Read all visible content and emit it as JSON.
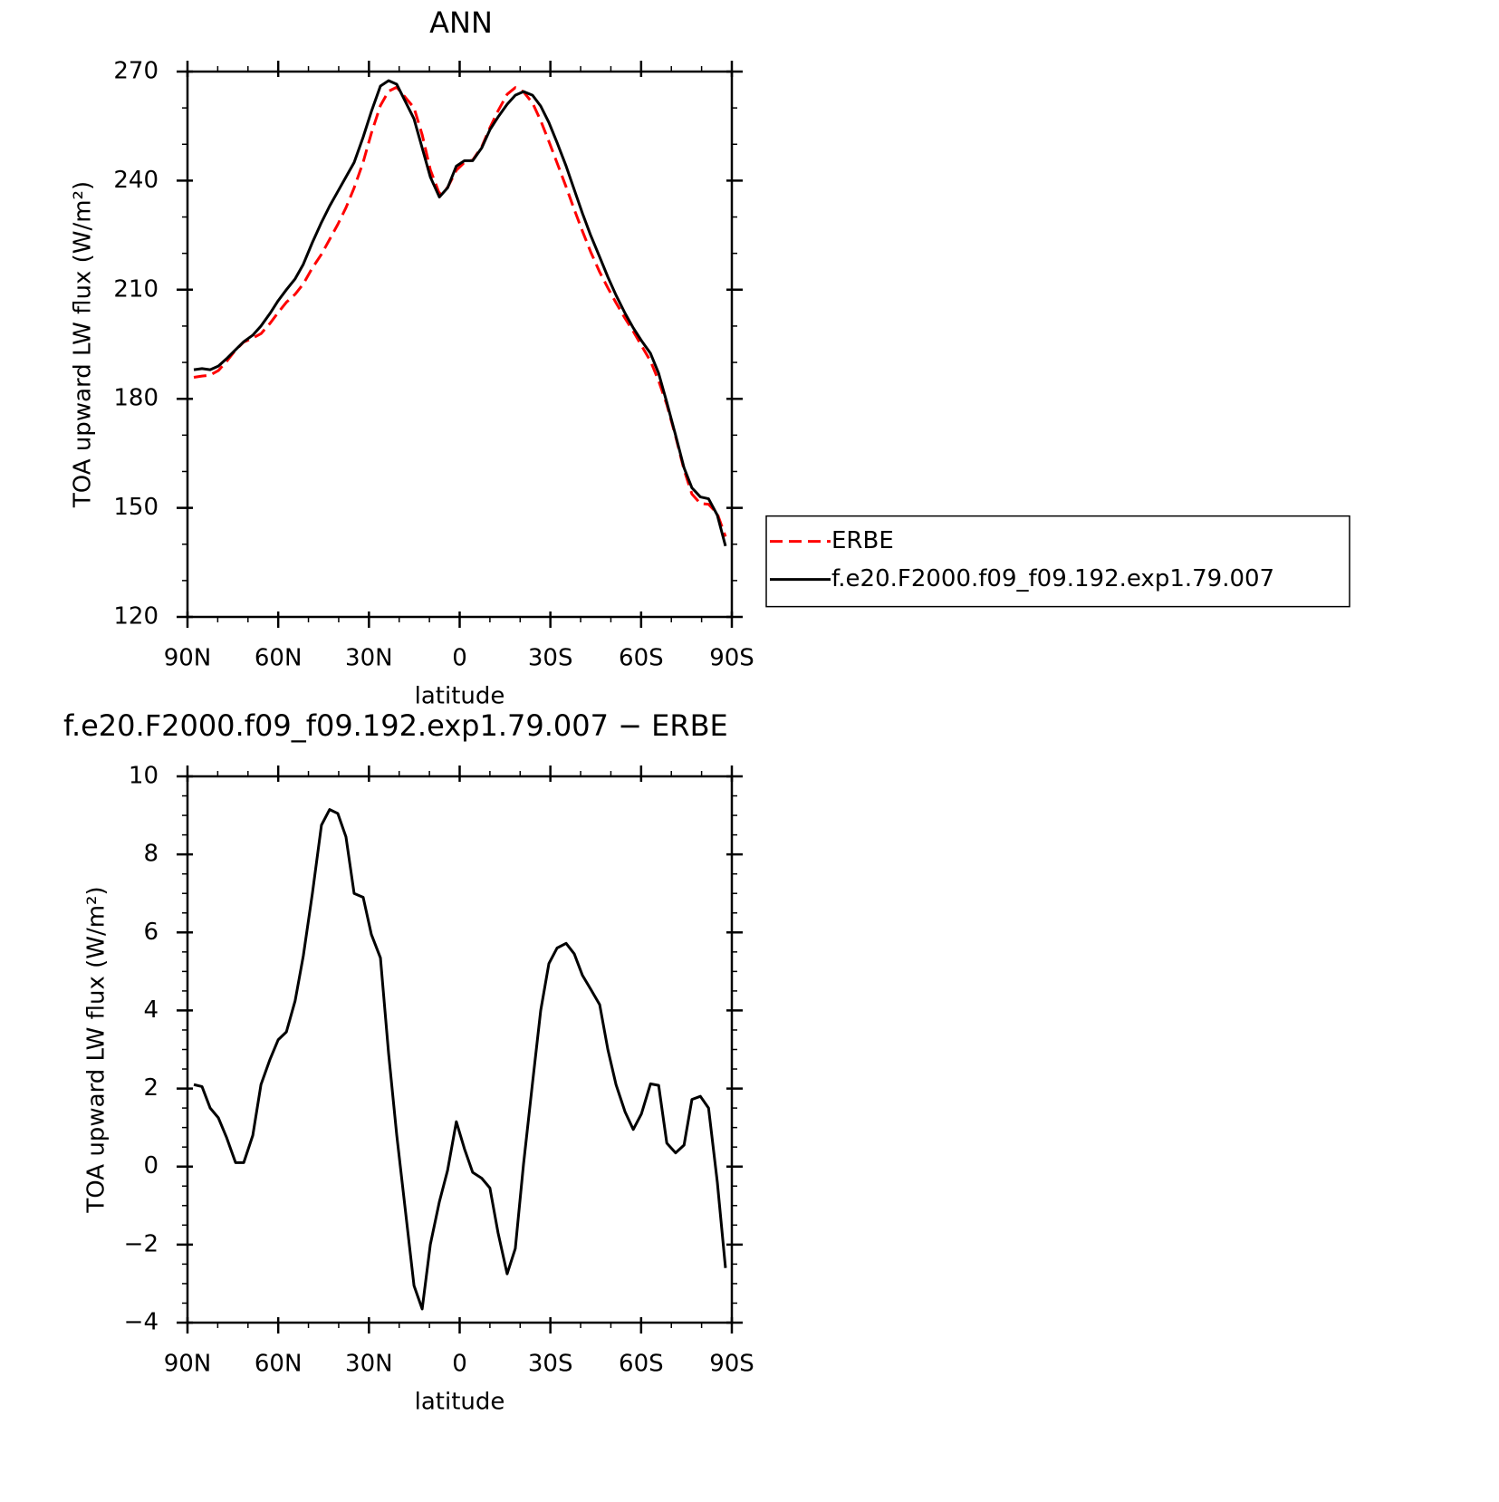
{
  "chart_data": [
    {
      "type": "line",
      "title": "ANN",
      "xlabel": "latitude",
      "ylabel": "TOA upward LW flux (W/m²)",
      "x": [
        87.9,
        85.2,
        82.5,
        79.8,
        77.1,
        74.1,
        71.4,
        68.4,
        65.7,
        62.7,
        60.0,
        57.3,
        54.4,
        51.7,
        48.7,
        45.7,
        43.0,
        40.3,
        37.6,
        34.9,
        31.9,
        29.2,
        26.2,
        23.5,
        20.8,
        15.1,
        12.4,
        9.7,
        6.7,
        4.0,
        1.1,
        -1.6,
        -4.3,
        -7.3,
        -10.0,
        -12.7,
        -15.7,
        -18.4,
        -21.1,
        -24.1,
        -26.8,
        -29.5,
        -32.2,
        -35.2,
        -37.9,
        -40.6,
        -43.3,
        -46.3,
        -49.0,
        -51.7,
        -54.7,
        -57.4,
        -60.1,
        -63.1,
        -65.8,
        -68.5,
        -71.4,
        -74.2,
        -76.8,
        -79.6,
        -82.3,
        -85.2,
        -87.9
      ],
      "xlim": [
        90,
        -90
      ],
      "xticks": [
        {
          "value": 90,
          "label": "90N"
        },
        {
          "value": 60,
          "label": "60N"
        },
        {
          "value": 30,
          "label": "30N"
        },
        0,
        {
          "value": -30,
          "label": "30S"
        },
        {
          "value": -60,
          "label": "60S"
        },
        {
          "value": -90,
          "label": "90S"
        }
      ],
      "ylim": [
        120,
        270
      ],
      "yticks": [
        120,
        150,
        180,
        210,
        240,
        270
      ],
      "minor_ticks": {
        "x": 2,
        "y": 2
      },
      "legend": "right",
      "series": [
        {
          "name": "ERBE",
          "color": "#ff0000",
          "dash": true,
          "values": [
            185.9,
            186.25,
            186.5,
            187.75,
            190.25,
            193.4,
            195.6,
            196.7,
            197.9,
            200.75,
            203.75,
            206.55,
            208.75,
            211.6,
            216,
            219.75,
            223.85,
            227.95,
            232.55,
            238,
            245.1,
            253.05,
            260.65,
            264.6,
            265.7,
            260.05,
            252.65,
            243,
            236.4,
            238.1,
            242.85,
            245.05,
            245.65,
            249.3,
            254.55,
            259.2,
            263.75,
            265.6,
            264.45,
            261.35,
            256.5,
            250.8,
            244.9,
            238.28,
            232.05,
            226.1,
            220.45,
            214.85,
            210.5,
            206.4,
            202.1,
            198.55,
            194.65,
            190.38,
            184.92,
            178.4,
            169.65,
            160.45,
            153.78,
            151.2,
            151,
            148.4,
            142.1
          ]
        },
        {
          "name": "f.e20.F2000.f09_f09.192.exp1.79.007",
          "color": "#000000",
          "dash": false,
          "values": [
            188,
            188.3,
            188,
            189,
            191,
            193.5,
            195.7,
            197.5,
            200,
            203.5,
            207,
            210,
            213,
            217,
            223,
            228.5,
            233,
            237,
            241,
            245,
            252,
            259,
            266,
            267.5,
            266.5,
            257,
            249,
            241,
            235.5,
            238,
            244,
            245.5,
            245.5,
            249,
            254,
            257.5,
            261,
            263.5,
            264.5,
            263.5,
            260.5,
            256,
            250.5,
            244,
            237.5,
            231,
            225,
            219,
            213.5,
            208.5,
            203.5,
            199.5,
            196,
            192.5,
            187,
            179,
            170,
            161,
            155.5,
            153,
            152.5,
            148,
            139.5
          ]
        }
      ]
    },
    {
      "type": "line",
      "title": "f.e20.F2000.f09_f09.192.exp1.79.007 − ERBE",
      "xlabel": "latitude",
      "ylabel": "TOA upward LW flux (W/m²)",
      "x": [
        87.9,
        85.2,
        82.5,
        79.8,
        77.1,
        74.1,
        71.4,
        68.4,
        65.7,
        62.7,
        60.0,
        57.3,
        54.4,
        51.7,
        48.7,
        45.7,
        43.0,
        40.3,
        37.6,
        34.9,
        31.9,
        29.2,
        26.2,
        23.5,
        20.8,
        15.1,
        12.4,
        9.7,
        6.7,
        4.0,
        1.1,
        -1.6,
        -4.3,
        -7.3,
        -10.0,
        -12.7,
        -15.7,
        -18.4,
        -21.1,
        -24.1,
        -26.8,
        -29.5,
        -32.2,
        -35.2,
        -37.9,
        -40.6,
        -43.3,
        -46.3,
        -49.0,
        -51.7,
        -54.7,
        -57.4,
        -60.1,
        -63.1,
        -65.8,
        -68.5,
        -71.4,
        -74.2,
        -76.8,
        -79.6,
        -82.3,
        -85.2,
        -87.9
      ],
      "xlim": [
        90,
        -90
      ],
      "xticks": [
        {
          "value": 90,
          "label": "90N"
        },
        {
          "value": 60,
          "label": "60N"
        },
        {
          "value": 30,
          "label": "30N"
        },
        0,
        {
          "value": -30,
          "label": "30S"
        },
        {
          "value": -60,
          "label": "60S"
        },
        {
          "value": -90,
          "label": "90S"
        }
      ],
      "ylim": [
        -4,
        10
      ],
      "yticks": [
        {
          "value": -4,
          "label": "−4"
        },
        {
          "value": -2,
          "label": "−2"
        },
        0,
        2,
        4,
        6,
        8,
        10
      ],
      "minor_ticks": {
        "x": 2,
        "y": 3
      },
      "series": [
        {
          "color": "#000000",
          "dash": false,
          "values": [
            2.1,
            2.05,
            1.5,
            1.25,
            0.75,
            0.1,
            0.1,
            0.8,
            2.1,
            2.75,
            3.25,
            3.45,
            4.25,
            5.4,
            7.0,
            8.75,
            9.15,
            9.05,
            8.45,
            7.0,
            6.9,
            5.95,
            5.35,
            2.9,
            0.8,
            -3.05,
            -3.65,
            -2.0,
            -0.9,
            -0.1,
            1.15,
            0.45,
            -0.15,
            -0.3,
            -0.55,
            -1.7,
            -2.75,
            -2.1,
            0.05,
            2.15,
            4.0,
            5.2,
            5.6,
            5.72,
            5.45,
            4.9,
            4.55,
            4.15,
            3.0,
            2.1,
            1.4,
            0.95,
            1.35,
            2.12,
            2.08,
            0.6,
            0.35,
            0.55,
            1.72,
            1.8,
            1.5,
            -0.4,
            -2.6
          ]
        }
      ]
    }
  ]
}
